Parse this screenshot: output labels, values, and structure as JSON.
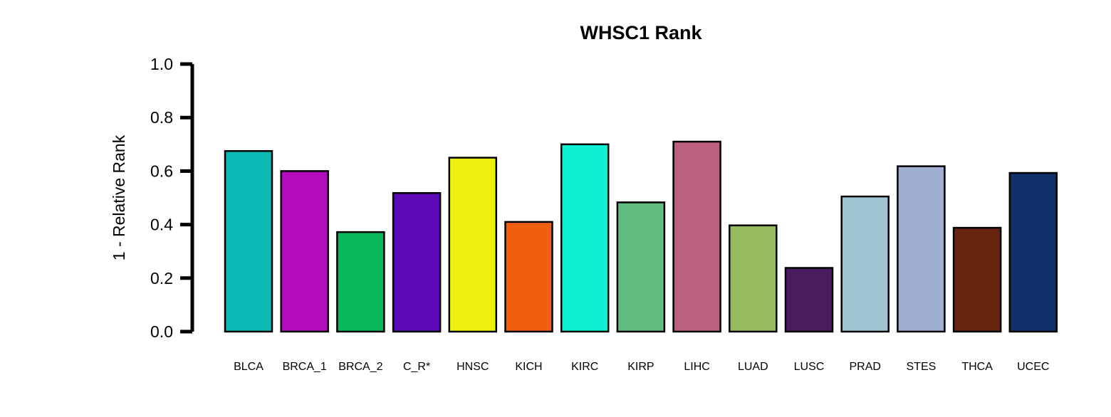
{
  "chart_data": {
    "type": "bar",
    "title": "WHSC1 Rank",
    "xlabel": "",
    "ylabel": "1 - Relative Rank",
    "ylim": [
      0,
      1
    ],
    "yticks": [
      "0.0",
      "0.2",
      "0.4",
      "0.6",
      "0.8",
      "1.0"
    ],
    "grid": false,
    "categories": [
      "BLCA",
      "BRCA_1",
      "BRCA_2",
      "C_R*",
      "HNSC",
      "KICH",
      "KIRC",
      "KIRP",
      "LIHC",
      "LUAD",
      "LUSC",
      "PRAD",
      "STES",
      "THCA",
      "UCEC"
    ],
    "values": [
      0.675,
      0.6,
      0.372,
      0.518,
      0.65,
      0.41,
      0.7,
      0.483,
      0.71,
      0.397,
      0.238,
      0.505,
      0.618,
      0.388,
      0.593
    ],
    "colors": [
      "#0bbab4",
      "#b30cbb",
      "#08b85a",
      "#5f0ab8",
      "#eef00e",
      "#f05f10",
      "#0ff0d2",
      "#62bb80",
      "#bc6080",
      "#98bb62",
      "#4a1c60",
      "#a0c6d4",
      "#a0aed2",
      "#682510",
      "#0f3068"
    ]
  }
}
